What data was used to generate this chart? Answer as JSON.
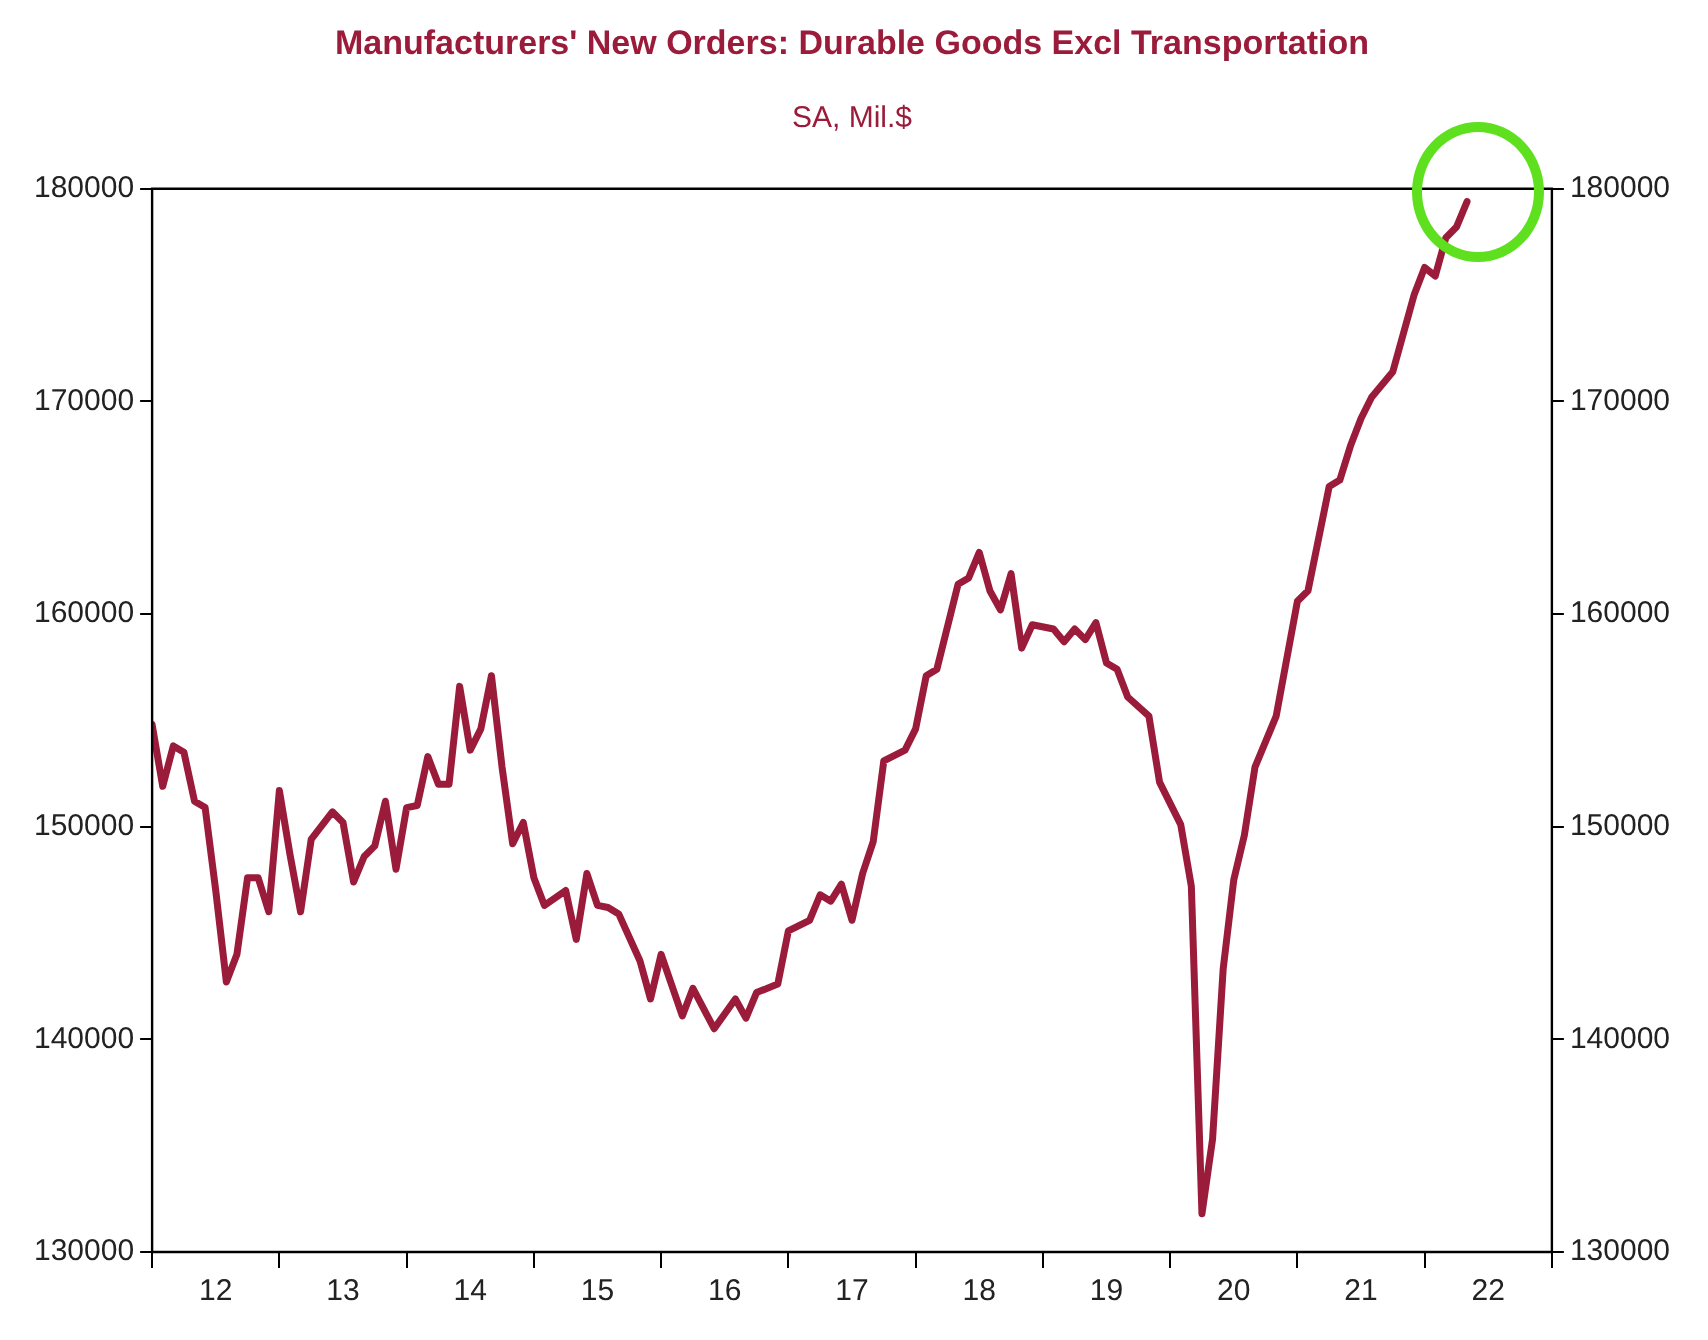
{
  "chart_data": {
    "type": "line",
    "title": "Manufacturers' New Orders: Durable Goods Excl Transportation",
    "subtitle": "SA, Mil.$",
    "x": [
      "2012-01",
      "2012-02",
      "2012-03",
      "2012-04",
      "2012-05",
      "2012-06",
      "2012-07",
      "2012-08",
      "2012-09",
      "2012-10",
      "2012-11",
      "2012-12",
      "2013-01",
      "2013-02",
      "2013-03",
      "2013-04",
      "2013-06",
      "2013-07",
      "2013-08",
      "2013-09",
      "2013-10",
      "2013-11",
      "2013-12",
      "2014-01",
      "2014-02",
      "2014-03",
      "2014-04",
      "2014-05",
      "2014-06",
      "2014-07",
      "2014-08",
      "2014-09",
      "2014-10",
      "2014-11",
      "2014-12",
      "2015-01",
      "2015-02",
      "2015-04",
      "2015-05",
      "2015-06",
      "2015-07",
      "2015-08",
      "2015-09",
      "2015-11",
      "2015-12",
      "2016-01",
      "2016-03",
      "2016-04",
      "2016-06",
      "2016-08",
      "2016-09",
      "2016-10",
      "2016-12",
      "2017-01",
      "2017-03",
      "2017-04",
      "2017-05",
      "2017-06",
      "2017-07",
      "2017-08",
      "2017-09",
      "2017-10",
      "2017-12",
      "2018-01",
      "2018-02",
      "2018-03",
      "2018-05",
      "2018-06",
      "2018-07",
      "2018-08",
      "2018-09",
      "2018-10",
      "2018-11",
      "2018-12",
      "2019-02",
      "2019-03",
      "2019-04",
      "2019-05",
      "2019-06",
      "2019-07",
      "2019-08",
      "2019-09",
      "2019-11",
      "2019-12",
      "2020-02",
      "2020-03",
      "2020-04",
      "2020-05",
      "2020-06",
      "2020-07",
      "2020-08",
      "2020-09",
      "2020-11",
      "2021-01",
      "2021-02",
      "2021-04",
      "2021-05",
      "2021-06",
      "2021-07",
      "2021-08",
      "2021-10",
      "2021-12",
      "2022-01",
      "2022-02",
      "2022-03",
      "2022-04",
      "2022-05"
    ],
    "series": [
      {
        "color": "#9b1b3a",
        "values": [
          154800,
          151900,
          153800,
          153500,
          151200,
          150900,
          147000,
          142700,
          144000,
          147600,
          147600,
          146000,
          151700,
          148700,
          146000,
          149400,
          150700,
          150200,
          147400,
          148600,
          149100,
          151200,
          148000,
          150900,
          151000,
          153300,
          152000,
          152000,
          156600,
          153600,
          154600,
          157100,
          152800,
          149200,
          150200,
          147600,
          146300,
          147000,
          144700,
          147800,
          146300,
          146200,
          145900,
          143700,
          141900,
          144000,
          141100,
          142400,
          140500,
          141900,
          141000,
          142200,
          142600,
          145100,
          145600,
          146800,
          146500,
          147300,
          145600,
          147800,
          149300,
          153100,
          153600,
          154600,
          157100,
          157400,
          161400,
          161700,
          162900,
          161100,
          160200,
          161900,
          158400,
          159500,
          159300,
          158700,
          159300,
          158800,
          159600,
          157700,
          157400,
          156100,
          155200,
          152100,
          150100,
          147200,
          131800,
          135300,
          143300,
          147500,
          149600,
          152800,
          155200,
          160600,
          161100,
          166000,
          166300,
          167900,
          169200,
          170200,
          171400,
          175000,
          176300,
          175900,
          177700,
          178200,
          179400
        ]
      }
    ],
    "xlim": [
      "2012-01",
      "2023-01"
    ],
    "xticks": [
      {
        "value": "2012-01",
        "label": null
      },
      {
        "value": "2012-07",
        "label": "12"
      },
      {
        "value": "2013-01",
        "label": null
      },
      {
        "value": "2013-07",
        "label": "13"
      },
      {
        "value": "2014-01",
        "label": null
      },
      {
        "value": "2014-07",
        "label": "14"
      },
      {
        "value": "2015-01",
        "label": null
      },
      {
        "value": "2015-07",
        "label": "15"
      },
      {
        "value": "2016-01",
        "label": null
      },
      {
        "value": "2016-07",
        "label": "16"
      },
      {
        "value": "2017-01",
        "label": null
      },
      {
        "value": "2017-07",
        "label": "17"
      },
      {
        "value": "2018-01",
        "label": null
      },
      {
        "value": "2018-07",
        "label": "18"
      },
      {
        "value": "2019-01",
        "label": null
      },
      {
        "value": "2019-07",
        "label": "19"
      },
      {
        "value": "2020-01",
        "label": null
      },
      {
        "value": "2020-07",
        "label": "20"
      },
      {
        "value": "2021-01",
        "label": null
      },
      {
        "value": "2021-07",
        "label": "21"
      },
      {
        "value": "2022-01",
        "label": null
      },
      {
        "value": "2022-07",
        "label": "22"
      },
      {
        "value": "2023-01",
        "label": null
      }
    ],
    "ylim": [
      130000,
      180000
    ],
    "yticks": [
      130000,
      140000,
      150000,
      160000,
      170000,
      180000
    ],
    "y2lim": [
      130000,
      180000
    ],
    "y2ticks": [
      130000,
      140000,
      150000,
      160000,
      170000,
      180000
    ],
    "grid": false,
    "legend": false,
    "marker": "none",
    "line_style": "solid"
  }
}
